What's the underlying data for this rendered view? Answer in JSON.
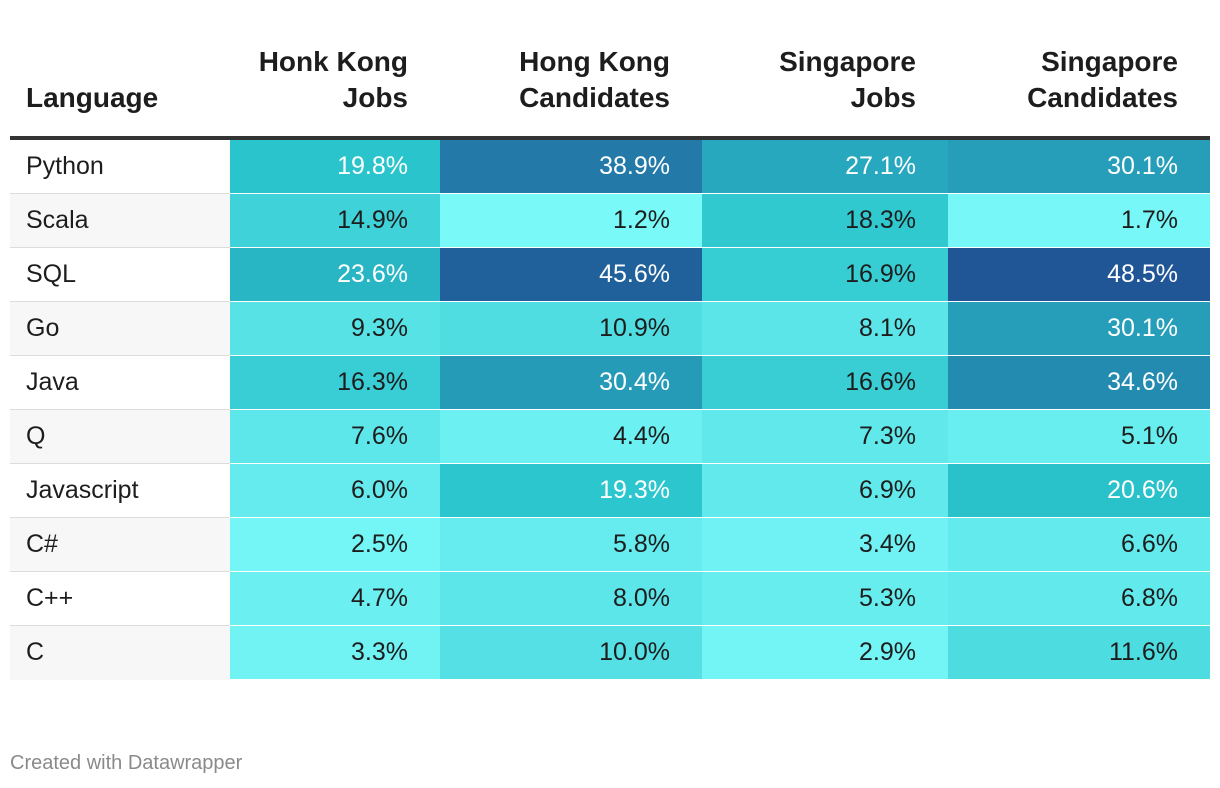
{
  "chart_data": {
    "type": "table",
    "columns": [
      "Language",
      "Honk Kong Jobs",
      "Hong Kong Candidates",
      "Singapore Jobs",
      "Singapore Candidates"
    ],
    "rows": [
      {
        "language": "Python",
        "values": [
          "19.8%",
          "38.9%",
          "27.1%",
          "30.1%"
        ]
      },
      {
        "language": "Scala",
        "values": [
          "14.9%",
          "1.2%",
          "18.3%",
          "1.7%"
        ]
      },
      {
        "language": "SQL",
        "values": [
          "23.6%",
          "45.6%",
          "16.9%",
          "48.5%"
        ]
      },
      {
        "language": "Go",
        "values": [
          "9.3%",
          "10.9%",
          "8.1%",
          "30.1%"
        ]
      },
      {
        "language": "Java",
        "values": [
          "16.3%",
          "30.4%",
          "16.6%",
          "34.6%"
        ]
      },
      {
        "language": "Q",
        "values": [
          "7.6%",
          "4.4%",
          "7.3%",
          "5.1%"
        ]
      },
      {
        "language": "Javascript",
        "values": [
          "6.0%",
          "19.3%",
          "6.9%",
          "20.6%"
        ]
      },
      {
        "language": "C#",
        "values": [
          "2.5%",
          "5.8%",
          "3.4%",
          "6.6%"
        ]
      },
      {
        "language": "C++",
        "values": [
          "4.7%",
          "8.0%",
          "5.3%",
          "6.8%"
        ]
      },
      {
        "language": "C",
        "values": [
          "3.3%",
          "10.0%",
          "2.9%",
          "11.6%"
        ]
      }
    ],
    "color_scale": {
      "min": 0,
      "max": 50,
      "low_color": "#7ffcfc",
      "mid_color": "#29c4cc",
      "high_color": "#1f4f93"
    }
  },
  "footer": {
    "credit": "Created with Datawrapper"
  }
}
